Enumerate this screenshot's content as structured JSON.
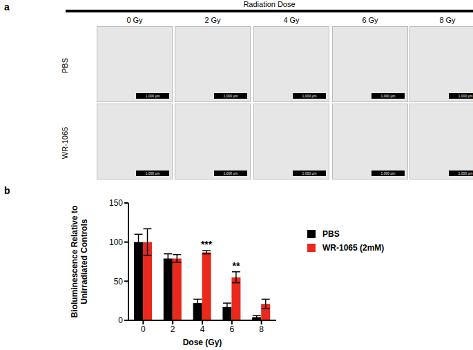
{
  "panel_labels": [
    "a",
    "b"
  ],
  "panel_a": {
    "header": "Radiation Dose",
    "columns": [
      "0 Gy",
      "2 Gy",
      "4 Gy",
      "6 Gy",
      "8 Gy"
    ],
    "rows": [
      "PBS",
      "WR-1065"
    ],
    "scale_bar": "1,000 μm"
  },
  "chart_data": {
    "type": "bar",
    "categories": [
      "0",
      "2",
      "4",
      "6",
      "8"
    ],
    "x_label": "Dose (Gy)",
    "y_label": "Bioluminescence Relative to Unirradiated Controls",
    "ylim": [
      0,
      150
    ],
    "yticks": [
      0,
      50,
      100,
      150
    ],
    "grid": false,
    "legend": "right",
    "series": [
      {
        "name": "PBS",
        "color": "#000000",
        "values": [
          100,
          79,
          22,
          17,
          4
        ],
        "errors": [
          10,
          6,
          5,
          5,
          2
        ]
      },
      {
        "name": "WR-1065 (2mM)",
        "color": "#e8291c",
        "values": [
          100,
          79,
          87,
          55,
          21
        ],
        "errors": [
          17,
          5,
          2,
          7,
          6
        ]
      }
    ],
    "annotations": [
      {
        "category": "4",
        "series": "WR-1065 (2mM)",
        "text": "***"
      },
      {
        "category": "6",
        "series": "WR-1065 (2mM)",
        "text": "**"
      }
    ]
  }
}
